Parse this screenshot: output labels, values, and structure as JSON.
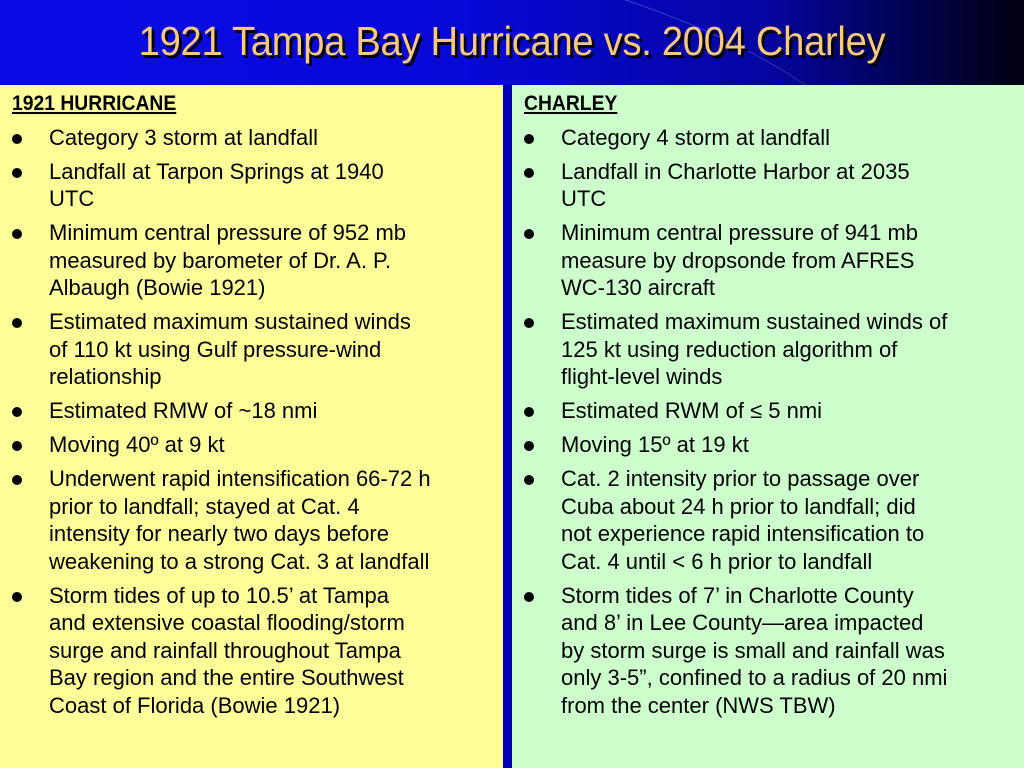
{
  "title": "1921 Tampa Bay Hurricane vs. 2004 Charley",
  "colors": {
    "left_bg": "#ffff99",
    "right_bg": "#ccffcc",
    "title": "#f8c978",
    "divider": "#0000b4"
  },
  "left": {
    "heading": "1921 HURRICANE",
    "items": [
      {
        "lines": [
          "Category 3 storm at landfall"
        ]
      },
      {
        "lines": [
          "Landfall at Tarpon Springs at 1940",
          "UTC"
        ]
      },
      {
        "lines": [
          "Minimum central pressure of 952 mb",
          "measured by barometer of Dr. A. P.",
          "Albaugh (Bowie 1921)"
        ]
      },
      {
        "lines": [
          "Estimated maximum sustained winds",
          "of 110 kt using Gulf pressure-wind",
          "relationship"
        ]
      },
      {
        "lines": [
          "Estimated RMW of ~18 nmi"
        ]
      },
      {
        "lines": [
          "Moving 40º at 9 kt"
        ]
      },
      {
        "lines": [
          "Underwent rapid intensification 66-72 h",
          "prior to landfall; stayed at Cat. 4",
          "intensity for nearly two days before",
          "weakening to a strong Cat. 3 at landfall"
        ]
      },
      {
        "lines": [
          "Storm tides of up to 10.5’ at Tampa",
          "and extensive coastal flooding/storm",
          "surge and rainfall throughout Tampa",
          "Bay region and the entire Southwest",
          "Coast of Florida (Bowie 1921)"
        ]
      }
    ]
  },
  "right": {
    "heading": "CHARLEY",
    "items": [
      {
        "lines": [
          "Category 4 storm at landfall"
        ]
      },
      {
        "lines": [
          "Landfall in Charlotte Harbor at 2035",
          "UTC"
        ]
      },
      {
        "lines": [
          "Minimum central pressure of 941 mb",
          "measure by dropsonde from AFRES",
          "WC-130 aircraft"
        ]
      },
      {
        "lines": [
          "Estimated maximum sustained winds of",
          "125 kt using reduction algorithm of",
          "flight-level winds"
        ]
      },
      {
        "lines": [
          "Estimated RWM of ≤ 5 nmi"
        ]
      },
      {
        "lines": [
          "Moving 15º at 19 kt"
        ]
      },
      {
        "lines": [
          "Cat. 2 intensity prior to passage over",
          "Cuba about 24 h prior to landfall; did",
          "not experience rapid intensification to",
          "Cat. 4 until < 6 h prior to landfall"
        ]
      },
      {
        "lines": [
          "Storm tides of 7’ in Charlotte County",
          "and 8’ in Lee County—area impacted",
          "by storm surge is small and rainfall was",
          "only 3-5”, confined to a radius of 20 nmi",
          "from the center (NWS TBW)"
        ]
      }
    ]
  }
}
